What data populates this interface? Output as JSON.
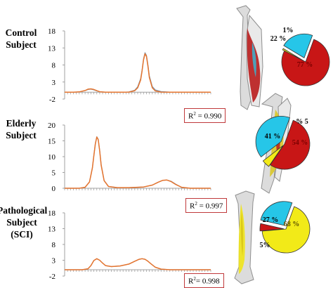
{
  "colors": {
    "measured": "#7b98b4",
    "fitted": "#e5742e",
    "axis": "#a0a0a0",
    "r2_border": "#c0393b",
    "pie_red": "#c81616",
    "pie_cyan": "#26c6e8",
    "pie_yellow": "#f2ea18",
    "pie_white": "#f4f4f4",
    "bone": "#d9d9d9"
  },
  "panels": [
    {
      "subject_label": [
        "Control",
        "Subject"
      ],
      "r2_text": "0.990"
    },
    {
      "subject_label": [
        "Elderly",
        "Subject"
      ],
      "r2_text": "0.997"
    },
    {
      "subject_label": [
        "Pathological",
        "Subject",
        "(SCI)"
      ],
      "r2_text": "0.998"
    }
  ],
  "chart_data": [
    {
      "type": "line",
      "yticks": [
        18,
        13,
        8,
        3,
        -2
      ],
      "ylim": [
        -2,
        18
      ],
      "xlim": [
        0,
        100
      ],
      "series": [
        {
          "color_key": "measured",
          "x": [
            0,
            6,
            10,
            14,
            16,
            18,
            20,
            22,
            24,
            28,
            34,
            40,
            44,
            48,
            50,
            52,
            53,
            54,
            55,
            56,
            57,
            58,
            60,
            62,
            66,
            72,
            80,
            90,
            100
          ],
          "y": [
            0,
            0,
            0.1,
            0.5,
            0.8,
            0.9,
            0.7,
            0.4,
            0.15,
            0.02,
            0,
            0,
            0.1,
            0.6,
            1.6,
            4.0,
            6.5,
            9.8,
            11.6,
            10.8,
            8.0,
            4.8,
            1.7,
            0.7,
            0.2,
            0.05,
            0,
            0,
            0
          ]
        },
        {
          "color_key": "fitted",
          "x": [
            0,
            6,
            10,
            14,
            16,
            18,
            20,
            22,
            24,
            28,
            34,
            40,
            44,
            48,
            50,
            52,
            53,
            54,
            55,
            56,
            57,
            58,
            60,
            62,
            66,
            72,
            80,
            90,
            100
          ],
          "y": [
            0,
            0,
            0.1,
            0.5,
            0.9,
            1.0,
            0.8,
            0.45,
            0.15,
            0.02,
            0,
            0,
            0.05,
            0.45,
            1.3,
            3.6,
            6.2,
            9.5,
            11.3,
            10.5,
            7.6,
            4.3,
            1.3,
            0.4,
            0.05,
            0,
            0,
            0,
            0
          ]
        }
      ]
    },
    {
      "type": "line",
      "yticks": [
        20,
        15,
        10,
        5,
        0
      ],
      "ylim": [
        0,
        20
      ],
      "xlim": [
        0,
        100
      ],
      "series": [
        {
          "color_key": "measured",
          "x": [
            0,
            10,
            14,
            17,
            19,
            20,
            21,
            22,
            23,
            24,
            25,
            27,
            30,
            36,
            44,
            54,
            60,
            64,
            67,
            70,
            73,
            76,
            80,
            86,
            100
          ],
          "y": [
            0,
            0,
            0.3,
            2.0,
            6.5,
            10.5,
            14.2,
            16.3,
            15.5,
            12.0,
            7.5,
            2.5,
            0.6,
            0.2,
            0.2,
            0.4,
            1.0,
            1.9,
            2.5,
            2.6,
            2.2,
            1.3,
            0.3,
            0,
            0
          ]
        },
        {
          "color_key": "fitted",
          "x": [
            0,
            10,
            14,
            17,
            19,
            20,
            21,
            22,
            23,
            24,
            25,
            27,
            30,
            36,
            44,
            54,
            60,
            64,
            67,
            70,
            73,
            76,
            80,
            86,
            100
          ],
          "y": [
            0,
            0,
            0.3,
            2.0,
            6.4,
            10.3,
            14.0,
            16.2,
            15.4,
            11.8,
            7.3,
            2.4,
            0.55,
            0.2,
            0.2,
            0.4,
            1.0,
            1.9,
            2.5,
            2.6,
            2.1,
            1.2,
            0.3,
            0,
            0
          ]
        }
      ]
    },
    {
      "type": "line",
      "yticks": [
        18,
        13,
        8,
        3,
        -2
      ],
      "ylim": [
        -2,
        18
      ],
      "xlim": [
        0,
        100
      ],
      "series": [
        {
          "color_key": "measured",
          "x": [
            0,
            12,
            16,
            18,
            20,
            22,
            24,
            26,
            28,
            32,
            38,
            44,
            48,
            51,
            53,
            55,
            57,
            59,
            62,
            66,
            72,
            80,
            100
          ],
          "y": [
            0,
            0,
            0.3,
            1.3,
            2.9,
            3.5,
            3.0,
            2.1,
            1.3,
            1.0,
            1.2,
            1.8,
            2.7,
            3.3,
            3.5,
            3.3,
            2.7,
            1.9,
            0.8,
            0.2,
            0,
            0,
            0
          ]
        },
        {
          "color_key": "fitted",
          "x": [
            0,
            12,
            16,
            18,
            20,
            22,
            24,
            26,
            28,
            32,
            38,
            44,
            48,
            51,
            53,
            55,
            57,
            59,
            62,
            66,
            72,
            80,
            100
          ],
          "y": [
            0,
            0,
            0.3,
            1.3,
            2.9,
            3.5,
            3.0,
            2.1,
            1.3,
            1.0,
            1.2,
            1.8,
            2.7,
            3.3,
            3.5,
            3.3,
            2.7,
            1.9,
            0.8,
            0.2,
            0,
            0,
            0
          ]
        }
      ]
    }
  ],
  "pies": [
    {
      "slices": [
        {
          "value": 77,
          "color_key": "pie_red",
          "label": "77 %"
        },
        {
          "value": 1,
          "color_key": "pie_yellow",
          "label": "1%"
        },
        {
          "value": 22,
          "color_key": "pie_cyan",
          "label": "22 %"
        }
      ]
    },
    {
      "slices": [
        {
          "value": 54,
          "color_key": "pie_red",
          "label": "54 %"
        },
        {
          "value": 5,
          "color_key": "pie_yellow",
          "label": "% 5"
        },
        {
          "value": 41,
          "color_key": "pie_cyan",
          "label": "41 %"
        }
      ]
    },
    {
      "slices": [
        {
          "value": 68,
          "color_key": "pie_yellow",
          "label": "68 %"
        },
        {
          "value": 5,
          "color_key": "pie_red",
          "label": "5%"
        },
        {
          "value": 27,
          "color_key": "pie_cyan",
          "label": "27 %"
        }
      ]
    }
  ]
}
